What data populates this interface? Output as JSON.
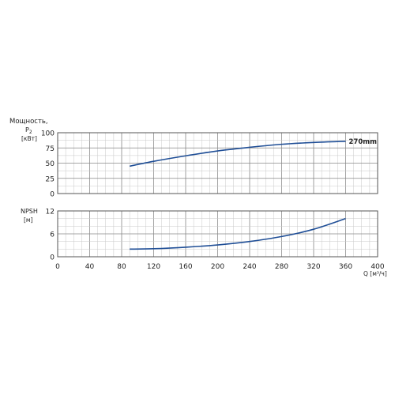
{
  "chart_data": [
    {
      "type": "line",
      "ylabel_line1": "Мощность,",
      "ylabel_line2": "P",
      "ylabel_sub": "2",
      "ylabel_unit": "[кВт]",
      "xlim": [
        0,
        400
      ],
      "ylim": [
        0,
        100
      ],
      "y_ticks": [
        0,
        25,
        50,
        75,
        100
      ],
      "grid": true,
      "series": [
        {
          "name": "270mm",
          "color": "#1f4e96",
          "x": [
            90,
            120,
            160,
            200,
            240,
            280,
            320,
            360
          ],
          "y": [
            45,
            53,
            62,
            70,
            76,
            81,
            84,
            86
          ]
        }
      ]
    },
    {
      "type": "line",
      "ylabel_line1": "NPSH",
      "ylabel_unit": "[м]",
      "xlabel": "Q [м³/ч]",
      "xlim": [
        0,
        400
      ],
      "ylim": [
        0,
        12
      ],
      "y_ticks": [
        0,
        6,
        12
      ],
      "x_ticks": [
        0,
        40,
        80,
        120,
        160,
        200,
        240,
        280,
        320,
        360,
        400
      ],
      "grid": true,
      "series": [
        {
          "color": "#1f4e96",
          "x": [
            90,
            120,
            160,
            200,
            240,
            280,
            320,
            360
          ],
          "y": [
            2.0,
            2.1,
            2.5,
            3.1,
            4.0,
            5.3,
            7.2,
            10.0
          ]
        }
      ]
    }
  ]
}
